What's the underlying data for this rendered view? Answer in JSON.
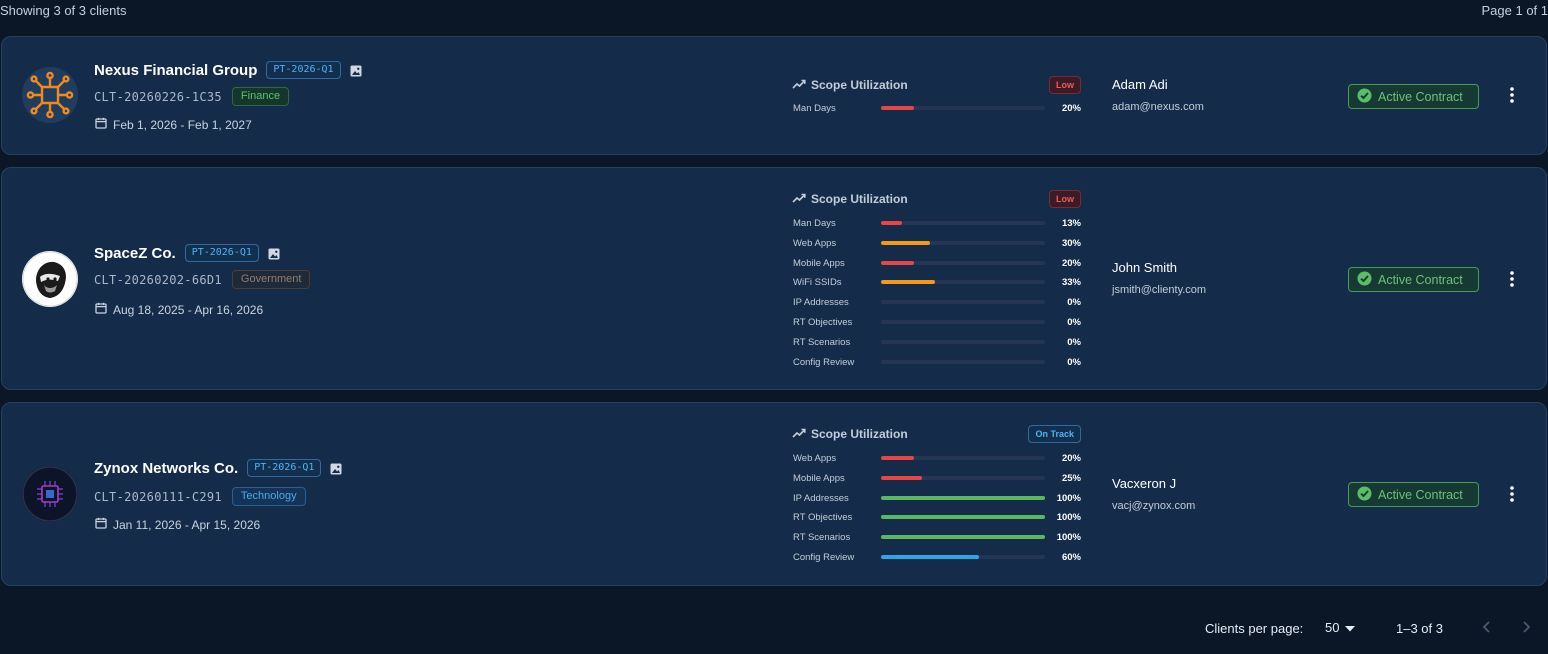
{
  "summary": {
    "showing": "Showing 3 of 3 clients",
    "page": "Page 1 of 1"
  },
  "scope_title": "Scope Utilization",
  "status_label": "Active Contract",
  "clients": [
    {
      "name": "Nexus Financial Group",
      "pt": "PT-2026-Q1",
      "code": "CLT-20260226-1C35",
      "industry": "Finance",
      "dates": "Feb 1, 2026 - Feb 1, 2027",
      "badge": "Low",
      "contact_name": "Adam Adi",
      "contact_email": "adam@nexus.com",
      "scope": [
        {
          "label": "Man Days",
          "pct": "20%",
          "value": 20,
          "color": "#e84545"
        }
      ]
    },
    {
      "name": "SpaceZ Co.",
      "pt": "PT-2026-Q1",
      "code": "CLT-20260202-66D1",
      "industry": "Government",
      "dates": "Aug 18, 2025 - Apr 16, 2026",
      "badge": "Low",
      "contact_name": "John Smith",
      "contact_email": "jsmith@clienty.com",
      "scope": [
        {
          "label": "Man Days",
          "pct": "13%",
          "value": 13,
          "color": "#e84545"
        },
        {
          "label": "Web Apps",
          "pct": "30%",
          "value": 30,
          "color": "#f59a16"
        },
        {
          "label": "Mobile Apps",
          "pct": "20%",
          "value": 20,
          "color": "#e84545"
        },
        {
          "label": "WiFi SSIDs",
          "pct": "33%",
          "value": 33,
          "color": "#f59a16"
        },
        {
          "label": "IP Addresses",
          "pct": "0%",
          "value": 0,
          "color": "#e84545"
        },
        {
          "label": "RT Objectives",
          "pct": "0%",
          "value": 0,
          "color": "#e84545"
        },
        {
          "label": "RT Scenarios",
          "pct": "0%",
          "value": 0,
          "color": "#e84545"
        },
        {
          "label": "Config Review",
          "pct": "0%",
          "value": 0,
          "color": "#e84545"
        }
      ]
    },
    {
      "name": "Zynox Networks Co.",
      "pt": "PT-2026-Q1",
      "code": "CLT-20260111-C291",
      "industry": "Technology",
      "dates": "Jan 11, 2026 - Apr 15, 2026",
      "badge": "On Track",
      "contact_name": "Vacxeron J",
      "contact_email": "vacj@zynox.com",
      "scope": [
        {
          "label": "Web Apps",
          "pct": "20%",
          "value": 20,
          "color": "#e84545"
        },
        {
          "label": "Mobile Apps",
          "pct": "25%",
          "value": 25,
          "color": "#e84545"
        },
        {
          "label": "IP Addresses",
          "pct": "100%",
          "value": 100,
          "color": "#5cb85c"
        },
        {
          "label": "RT Objectives",
          "pct": "100%",
          "value": 100,
          "color": "#5cb85c"
        },
        {
          "label": "RT Scenarios",
          "pct": "100%",
          "value": 100,
          "color": "#5cb85c"
        },
        {
          "label": "Config Review",
          "pct": "60%",
          "value": 60,
          "color": "#2ea6ee"
        }
      ]
    }
  ],
  "pagination": {
    "per_page_label": "Clients per page:",
    "per_page_value": "50",
    "range": "1–3 of 3"
  }
}
